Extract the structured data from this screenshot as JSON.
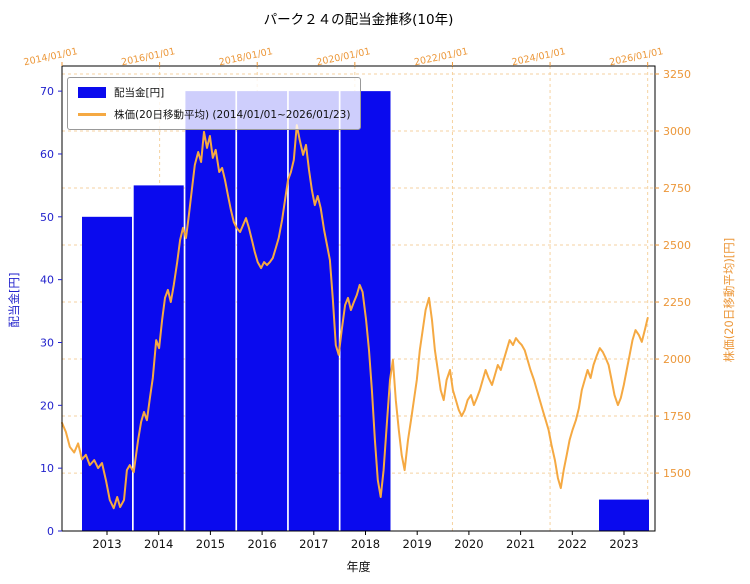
{
  "title": "パーク２４の配当金推移(10年)",
  "colors": {
    "bar": "#0a0aee",
    "left_axis": "#2222cc",
    "line": "#f5a942",
    "orange_axis": "#ec9739",
    "grid": "#f5d2a0"
  },
  "axes": {
    "left": {
      "label": "配当金[円]",
      "ticks": [
        0,
        10,
        20,
        30,
        40,
        50,
        60,
        70
      ],
      "range": [
        0,
        74
      ]
    },
    "right": {
      "label": "株価(20日移動平均)[円]",
      "ticks": [
        1500,
        1750,
        2000,
        2250,
        2500,
        2750,
        3000,
        3250
      ],
      "range": [
        1246,
        3285
      ]
    },
    "bottom": {
      "label": "年度",
      "ticks": [
        "2013",
        "2014",
        "2015",
        "2016",
        "2017",
        "2018",
        "2019",
        "2020",
        "2021",
        "2022",
        "2023"
      ]
    },
    "top": {
      "ticks": [
        "2014/01/01",
        "2016/01/01",
        "2018/01/01",
        "2020/01/01",
        "2022/01/01",
        "2024/01/01",
        "2026/01/01"
      ],
      "tick_years": [
        2014,
        2016,
        2018,
        2020,
        2022,
        2024,
        2026
      ],
      "range": [
        2014.0,
        2026.15
      ]
    }
  },
  "legend": {
    "items": [
      {
        "label": "配当金[円]",
        "type": "bar"
      },
      {
        "label": "株価(20日移動平均) (2014/01/01~2026/01/23)",
        "type": "line"
      }
    ]
  },
  "chart_data": {
    "type": "bar+line",
    "title": "パーク２４の配当金推移(10年)",
    "xlabel": "年度",
    "ylabel_left": "配当金[円]",
    "ylabel_right": "株価(20日移動平均)[円]",
    "bar_series": {
      "name": "配当金[円]",
      "axis": "left",
      "categories": [
        "2013",
        "2014",
        "2015",
        "2016",
        "2017",
        "2018",
        "2019",
        "2020",
        "2021",
        "2022",
        "2023"
      ],
      "values": [
        50,
        55,
        70,
        70,
        70,
        70,
        0,
        0,
        0,
        0,
        5
      ]
    },
    "line_series": {
      "name": "株価(20日移動平均)",
      "axis": "right",
      "date_span": "2014/01/01~2026/01/23",
      "points": [
        [
          2014.0,
          1720
        ],
        [
          2014.08,
          1680
        ],
        [
          2014.16,
          1615
        ],
        [
          2014.25,
          1590
        ],
        [
          2014.33,
          1630
        ],
        [
          2014.41,
          1560
        ],
        [
          2014.49,
          1580
        ],
        [
          2014.57,
          1535
        ],
        [
          2014.66,
          1557
        ],
        [
          2014.74,
          1522
        ],
        [
          2014.82,
          1544
        ],
        [
          2014.9,
          1469
        ],
        [
          2014.98,
          1382
        ],
        [
          2015.06,
          1346
        ],
        [
          2015.13,
          1395
        ],
        [
          2015.19,
          1351
        ],
        [
          2015.27,
          1382
        ],
        [
          2015.33,
          1513
        ],
        [
          2015.39,
          1535
        ],
        [
          2015.47,
          1504
        ],
        [
          2015.56,
          1645
        ],
        [
          2015.62,
          1724
        ],
        [
          2015.68,
          1768
        ],
        [
          2015.74,
          1732
        ],
        [
          2015.8,
          1829
        ],
        [
          2015.86,
          1917
        ],
        [
          2015.93,
          2083
        ],
        [
          2015.99,
          2048
        ],
        [
          2016.05,
          2171
        ],
        [
          2016.11,
          2268
        ],
        [
          2016.17,
          2303
        ],
        [
          2016.23,
          2250
        ],
        [
          2016.29,
          2325
        ],
        [
          2016.36,
          2425
        ],
        [
          2016.42,
          2522
        ],
        [
          2016.48,
          2575
        ],
        [
          2016.54,
          2531
        ],
        [
          2016.6,
          2632
        ],
        [
          2016.66,
          2741
        ],
        [
          2016.72,
          2851
        ],
        [
          2016.79,
          2908
        ],
        [
          2016.85,
          2864
        ],
        [
          2016.91,
          2996
        ],
        [
          2016.97,
          2926
        ],
        [
          2017.03,
          2978
        ],
        [
          2017.09,
          2882
        ],
        [
          2017.15,
          2917
        ],
        [
          2017.22,
          2820
        ],
        [
          2017.28,
          2838
        ],
        [
          2017.34,
          2785
        ],
        [
          2017.4,
          2719
        ],
        [
          2017.46,
          2654
        ],
        [
          2017.52,
          2601
        ],
        [
          2017.58,
          2575
        ],
        [
          2017.65,
          2557
        ],
        [
          2017.71,
          2588
        ],
        [
          2017.77,
          2618
        ],
        [
          2017.83,
          2575
        ],
        [
          2017.89,
          2522
        ],
        [
          2017.95,
          2469
        ],
        [
          2018.01,
          2425
        ],
        [
          2018.08,
          2399
        ],
        [
          2018.14,
          2425
        ],
        [
          2018.2,
          2412
        ],
        [
          2018.26,
          2425
        ],
        [
          2018.32,
          2443
        ],
        [
          2018.38,
          2487
        ],
        [
          2018.44,
          2531
        ],
        [
          2018.51,
          2610
        ],
        [
          2018.57,
          2697
        ],
        [
          2018.63,
          2785
        ],
        [
          2018.69,
          2820
        ],
        [
          2018.75,
          2873
        ],
        [
          2018.81,
          3026
        ],
        [
          2018.87,
          2961
        ],
        [
          2018.94,
          2895
        ],
        [
          2019.0,
          2939
        ],
        [
          2019.06,
          2829
        ],
        [
          2019.12,
          2741
        ],
        [
          2019.18,
          2675
        ],
        [
          2019.24,
          2715
        ],
        [
          2019.3,
          2662
        ],
        [
          2019.37,
          2566
        ],
        [
          2019.43,
          2500
        ],
        [
          2019.49,
          2434
        ],
        [
          2019.55,
          2259
        ],
        [
          2019.61,
          2061
        ],
        [
          2019.67,
          2018
        ],
        [
          2019.73,
          2127
        ],
        [
          2019.8,
          2237
        ],
        [
          2019.86,
          2268
        ],
        [
          2019.92,
          2215
        ],
        [
          2019.98,
          2250
        ],
        [
          2020.04,
          2281
        ],
        [
          2020.1,
          2325
        ],
        [
          2020.16,
          2294
        ],
        [
          2020.23,
          2171
        ],
        [
          2020.29,
          2039
        ],
        [
          2020.35,
          1864
        ],
        [
          2020.41,
          1645
        ],
        [
          2020.47,
          1469
        ],
        [
          2020.53,
          1395
        ],
        [
          2020.59,
          1513
        ],
        [
          2020.66,
          1732
        ],
        [
          2020.72,
          1908
        ],
        [
          2020.78,
          1996
        ],
        [
          2020.84,
          1820
        ],
        [
          2020.9,
          1689
        ],
        [
          2020.96,
          1579
        ],
        [
          2021.02,
          1513
        ],
        [
          2021.09,
          1645
        ],
        [
          2021.15,
          1732
        ],
        [
          2021.21,
          1820
        ],
        [
          2021.27,
          1908
        ],
        [
          2021.33,
          2039
        ],
        [
          2021.39,
          2127
        ],
        [
          2021.45,
          2215
        ],
        [
          2021.52,
          2268
        ],
        [
          2021.58,
          2171
        ],
        [
          2021.64,
          2039
        ],
        [
          2021.7,
          1952
        ],
        [
          2021.76,
          1864
        ],
        [
          2021.82,
          1820
        ],
        [
          2021.88,
          1908
        ],
        [
          2021.95,
          1952
        ],
        [
          2022.01,
          1864
        ],
        [
          2022.07,
          1820
        ],
        [
          2022.13,
          1776
        ],
        [
          2022.19,
          1750
        ],
        [
          2022.25,
          1776
        ],
        [
          2022.31,
          1820
        ],
        [
          2022.38,
          1842
        ],
        [
          2022.44,
          1798
        ],
        [
          2022.5,
          1829
        ],
        [
          2022.56,
          1864
        ],
        [
          2022.62,
          1908
        ],
        [
          2022.68,
          1952
        ],
        [
          2022.74,
          1917
        ],
        [
          2022.81,
          1886
        ],
        [
          2022.87,
          1930
        ],
        [
          2022.93,
          1974
        ],
        [
          2022.99,
          1952
        ],
        [
          2023.05,
          1996
        ],
        [
          2023.11,
          2039
        ],
        [
          2023.17,
          2083
        ],
        [
          2023.24,
          2061
        ],
        [
          2023.3,
          2092
        ],
        [
          2023.36,
          2075
        ],
        [
          2023.42,
          2061
        ],
        [
          2023.48,
          2039
        ],
        [
          2023.54,
          1996
        ],
        [
          2023.6,
          1952
        ],
        [
          2023.67,
          1908
        ],
        [
          2023.73,
          1864
        ],
        [
          2023.79,
          1820
        ],
        [
          2023.85,
          1776
        ],
        [
          2023.91,
          1732
        ],
        [
          2023.97,
          1689
        ],
        [
          2024.03,
          1623
        ],
        [
          2024.1,
          1557
        ],
        [
          2024.16,
          1478
        ],
        [
          2024.22,
          1434
        ],
        [
          2024.28,
          1513
        ],
        [
          2024.34,
          1579
        ],
        [
          2024.4,
          1645
        ],
        [
          2024.46,
          1689
        ],
        [
          2024.53,
          1732
        ],
        [
          2024.59,
          1785
        ],
        [
          2024.65,
          1864
        ],
        [
          2024.71,
          1908
        ],
        [
          2024.77,
          1952
        ],
        [
          2024.83,
          1917
        ],
        [
          2024.89,
          1974
        ],
        [
          2024.96,
          2017
        ],
        [
          2025.02,
          2048
        ],
        [
          2025.08,
          2031
        ],
        [
          2025.14,
          2004
        ],
        [
          2025.2,
          1974
        ],
        [
          2025.26,
          1908
        ],
        [
          2025.32,
          1842
        ],
        [
          2025.39,
          1798
        ],
        [
          2025.45,
          1829
        ],
        [
          2025.51,
          1886
        ],
        [
          2025.57,
          1952
        ],
        [
          2025.63,
          2017
        ],
        [
          2025.69,
          2083
        ],
        [
          2025.75,
          2127
        ],
        [
          2025.82,
          2105
        ],
        [
          2025.88,
          2075
        ],
        [
          2025.94,
          2127
        ],
        [
          2026.0,
          2180
        ]
      ]
    }
  }
}
